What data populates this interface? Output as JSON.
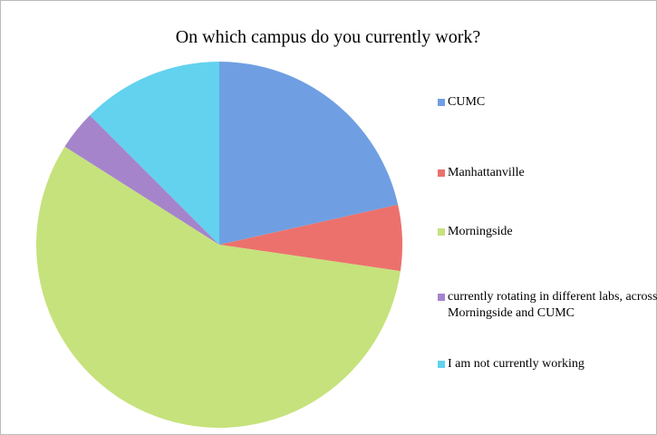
{
  "chart_data": {
    "type": "pie",
    "title": "On which campus do you currently work?",
    "categories": [
      "CUMC",
      "Manhattanville",
      "Morningside",
      "currently rotating in different labs, across Morningside and CUMC",
      "I am not currently working"
    ],
    "values": [
      21.5,
      5.8,
      56.7,
      3.5,
      12.5
    ],
    "colors": [
      "#6f9fe2",
      "#ec716c",
      "#c6e27c",
      "#a584cc",
      "#62d2ee"
    ],
    "legend": "right"
  }
}
